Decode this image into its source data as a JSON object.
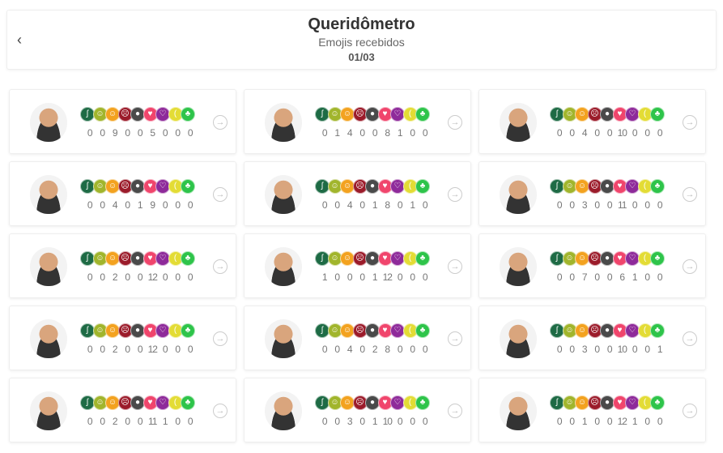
{
  "header": {
    "back_icon": "chevron-left-icon",
    "back_glyph": "‹",
    "title": "Queridômetro",
    "subtitle": "Emojis recebidos",
    "date": "01/03"
  },
  "emojis": [
    {
      "name": "snake",
      "color": "#1e6b45",
      "glyph": "ʃ"
    },
    {
      "name": "vomit",
      "color": "#a1b52c",
      "glyph": "☺"
    },
    {
      "name": "lie",
      "color": "#f3a21f",
      "glyph": "☺"
    },
    {
      "name": "angry",
      "color": "#9b1b2a",
      "glyph": "☹"
    },
    {
      "name": "bomb",
      "color": "#4a4a4a",
      "glyph": "●"
    },
    {
      "name": "heart",
      "color": "#f0456c",
      "glyph": "♥"
    },
    {
      "name": "broken-heart",
      "color": "#8e2a9a",
      "glyph": "♡"
    },
    {
      "name": "banana",
      "color": "#e3dc35",
      "glyph": "("
    },
    {
      "name": "plant",
      "color": "#2ec44a",
      "glyph": "♣"
    }
  ],
  "participants": [
    {
      "counts": [
        "0",
        "0",
        "9",
        "0",
        "0",
        "5",
        "0",
        "0",
        "0"
      ]
    },
    {
      "counts": [
        "0",
        "1",
        "4",
        "0",
        "0",
        "8",
        "1",
        "0",
        "0"
      ]
    },
    {
      "counts": [
        "0",
        "0",
        "4",
        "0",
        "0",
        "10",
        "0",
        "0",
        "0"
      ]
    },
    {
      "counts": [
        "0",
        "0",
        "4",
        "0",
        "1",
        "9",
        "0",
        "0",
        "0"
      ]
    },
    {
      "counts": [
        "0",
        "0",
        "4",
        "0",
        "1",
        "8",
        "0",
        "1",
        "0"
      ]
    },
    {
      "counts": [
        "0",
        "0",
        "3",
        "0",
        "0",
        "11",
        "0",
        "0",
        "0"
      ]
    },
    {
      "counts": [
        "0",
        "0",
        "2",
        "0",
        "0",
        "12",
        "0",
        "0",
        "0"
      ]
    },
    {
      "counts": [
        "1",
        "0",
        "0",
        "0",
        "1",
        "12",
        "0",
        "0",
        "0"
      ]
    },
    {
      "counts": [
        "0",
        "0",
        "7",
        "0",
        "0",
        "6",
        "1",
        "0",
        "0"
      ]
    },
    {
      "counts": [
        "0",
        "0",
        "2",
        "0",
        "0",
        "12",
        "0",
        "0",
        "0"
      ]
    },
    {
      "counts": [
        "0",
        "0",
        "4",
        "0",
        "2",
        "8",
        "0",
        "0",
        "0"
      ]
    },
    {
      "counts": [
        "0",
        "0",
        "3",
        "0",
        "0",
        "10",
        "0",
        "0",
        "1"
      ]
    },
    {
      "counts": [
        "0",
        "0",
        "2",
        "0",
        "0",
        "11",
        "1",
        "0",
        "0"
      ]
    },
    {
      "counts": [
        "0",
        "0",
        "3",
        "0",
        "1",
        "10",
        "0",
        "0",
        "0"
      ]
    },
    {
      "counts": [
        "0",
        "0",
        "1",
        "0",
        "0",
        "12",
        "1",
        "0",
        "0"
      ]
    }
  ],
  "arrow_glyph": "→"
}
